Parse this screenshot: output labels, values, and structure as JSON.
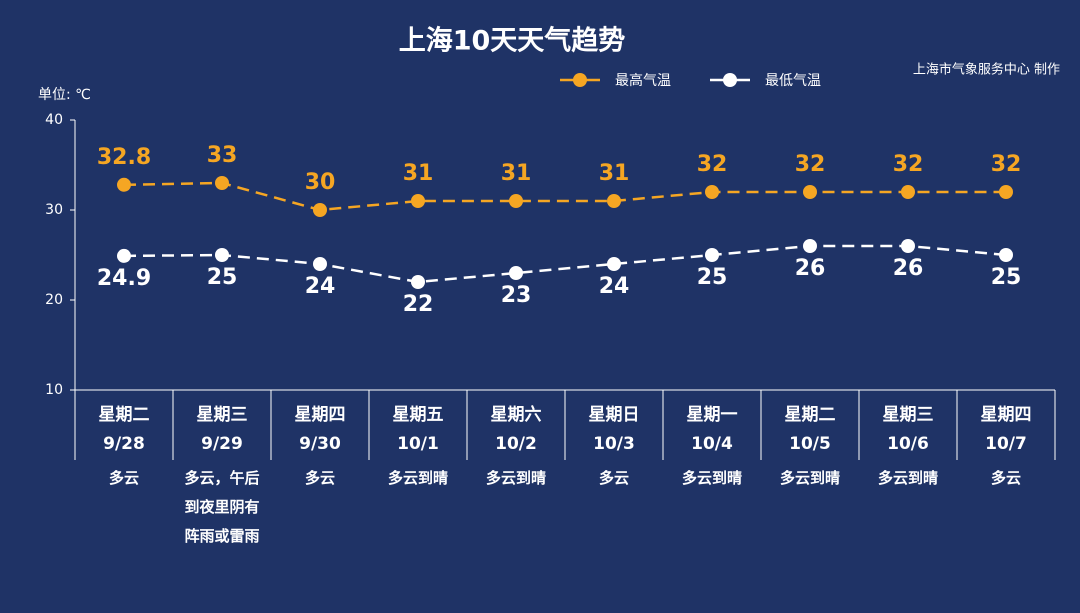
{
  "chart_data": {
    "type": "line",
    "title": "上海10天天气趋势",
    "source": "上海市气象服务中心 制作",
    "y_label": "单位: ℃",
    "weekdays": [
      "星期二",
      "星期三",
      "星期四",
      "星期五",
      "星期六",
      "星期日",
      "星期一",
      "星期二",
      "星期三",
      "星期四"
    ],
    "categories": [
      "9/28",
      "9/29",
      "9/30",
      "10/1",
      "10/2",
      "10/3",
      "10/4",
      "10/5",
      "10/6",
      "10/7"
    ],
    "weather": [
      "多云",
      "多云，午后到夜里阴有阵雨或雷雨",
      "多云",
      "多云到晴",
      "多云到晴",
      "多云",
      "多云到晴",
      "多云到晴",
      "多云到晴",
      "多云"
    ],
    "series": [
      {
        "name": "最高气温",
        "color": "#f5a623",
        "values": [
          32.8,
          33,
          30,
          31,
          31,
          31,
          32,
          32,
          32,
          32
        ]
      },
      {
        "name": "最低气温",
        "color": "#ffffff",
        "values": [
          24.9,
          25,
          24,
          22,
          23,
          24,
          25,
          26,
          26,
          25
        ]
      }
    ],
    "ylim": [
      10,
      40
    ],
    "yticks": [
      10,
      20,
      30,
      40
    ]
  }
}
